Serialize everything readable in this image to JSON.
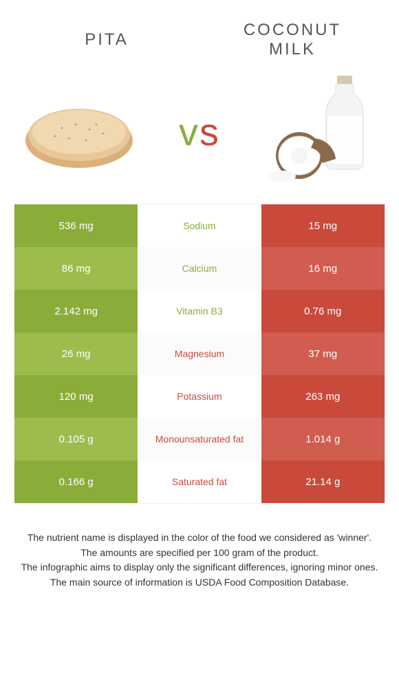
{
  "header": {
    "left": "PITA",
    "right": "COCONUT MILK"
  },
  "vs": {
    "v": "v",
    "s": "s"
  },
  "colors": {
    "left_dark": "#8aad3a",
    "left_light": "#9cbc4e",
    "right_dark": "#c94a3b",
    "right_light": "#d05d4f",
    "winner_left_text": "#8aad3a",
    "winner_right_text": "#c94a3b"
  },
  "rows": [
    {
      "left": "536 mg",
      "mid": "Sodium",
      "right": "15 mg",
      "winner": "left"
    },
    {
      "left": "86 mg",
      "mid": "Calcium",
      "right": "16 mg",
      "winner": "left"
    },
    {
      "left": "2.142 mg",
      "mid": "Vitamin B3",
      "right": "0.76 mg",
      "winner": "left"
    },
    {
      "left": "26 mg",
      "mid": "Magnesium",
      "right": "37 mg",
      "winner": "right"
    },
    {
      "left": "120 mg",
      "mid": "Potassium",
      "right": "263 mg",
      "winner": "right"
    },
    {
      "left": "0.105 g",
      "mid": "Monounsaturated fat",
      "right": "1.014 g",
      "winner": "right"
    },
    {
      "left": "0.166 g",
      "mid": "Saturated fat",
      "right": "21.14 g",
      "winner": "right"
    }
  ],
  "footer": [
    "The nutrient name is displayed in the color of the food we considered as 'winner'.",
    "The amounts are specified per 100 gram of the product.",
    "The infographic aims to display only the significant differences, ignoring minor ones.",
    "The main source of information is USDA Food Composition Database."
  ]
}
